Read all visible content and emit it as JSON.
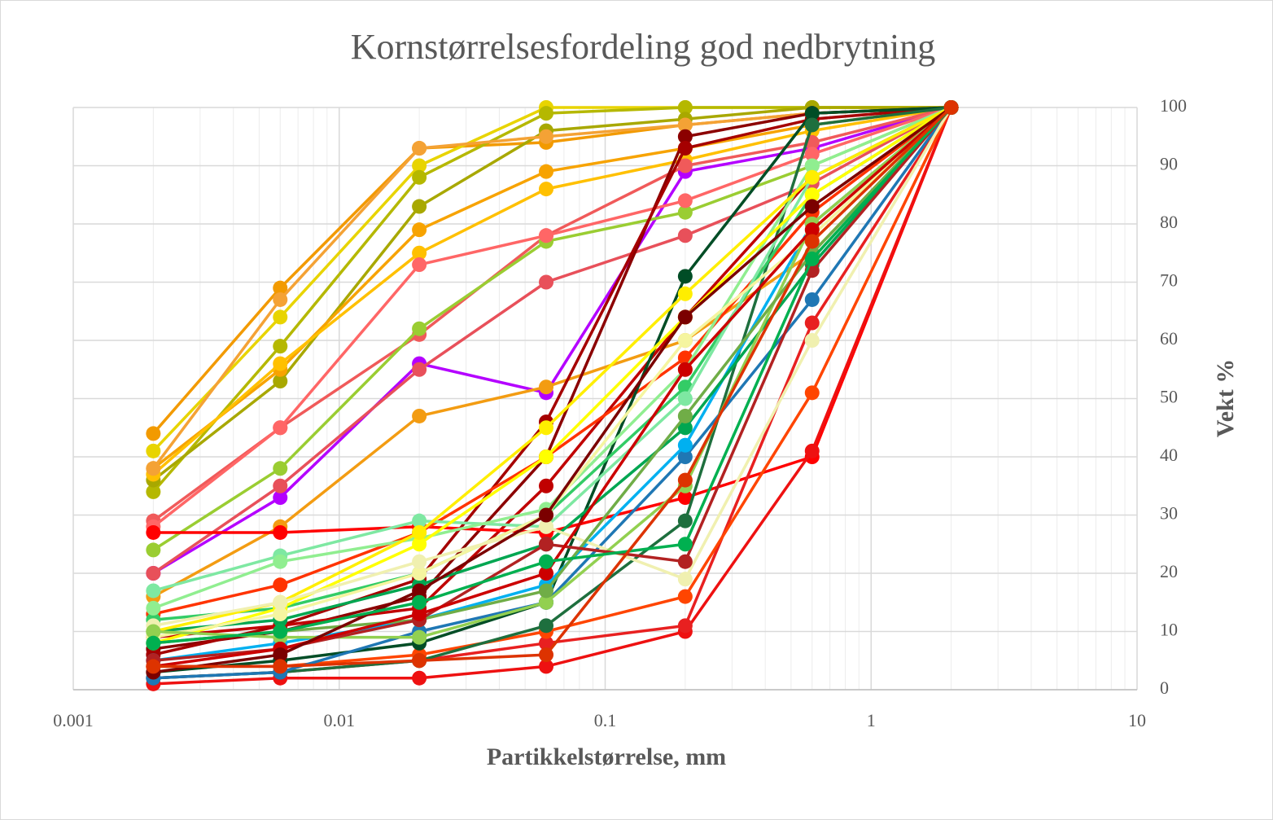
{
  "chart_data": {
    "type": "line",
    "title": "Kornstørrelsesfordeling god nedbrytning",
    "x_label": "Partikkelstørrelse, mm",
    "y_label": "Vekt %",
    "x": [
      0.002,
      0.006,
      0.02,
      0.06,
      0.2,
      0.6,
      2
    ],
    "xlim": [
      0.001,
      10
    ],
    "xticks": [
      0.001,
      0.01,
      0.1,
      1,
      10
    ],
    "x_log": true,
    "ylim": [
      0,
      100
    ],
    "yticks": [
      0,
      10,
      20,
      30,
      40,
      50,
      60,
      70,
      80,
      90,
      100
    ],
    "grid": true,
    "minor_grid": true,
    "y_axis_side": "right",
    "series": [
      {
        "color": "#f29a00",
        "values": [
          44,
          69,
          93,
          94,
          97,
          99,
          100
        ]
      },
      {
        "color": "#e8d400",
        "values": [
          41,
          64,
          90,
          100,
          100,
          100,
          100
        ]
      },
      {
        "color": "#b5b800",
        "values": [
          34,
          59,
          88,
          99,
          100,
          100,
          100
        ]
      },
      {
        "color": "#a8a800",
        "values": [
          36,
          53,
          83,
          96,
          98,
          100,
          100
        ]
      },
      {
        "color": "#f7a300",
        "values": [
          38,
          55,
          79,
          89,
          93,
          97,
          100
        ]
      },
      {
        "color": "#ffc000",
        "values": [
          37,
          56,
          75,
          86,
          91,
          96,
          100
        ]
      },
      {
        "color": "#f4a235",
        "values": [
          38,
          67,
          93,
          95,
          97,
          99,
          100
        ]
      },
      {
        "color": "#b400ff",
        "values": [
          20,
          33,
          56,
          51,
          89,
          93,
          100
        ]
      },
      {
        "color": "#f05a5a",
        "values": [
          29,
          45,
          61,
          78,
          90,
          94,
          100
        ]
      },
      {
        "color": "#e8505a",
        "values": [
          20,
          35,
          55,
          70,
          78,
          87,
          100
        ]
      },
      {
        "color": "#9acd32",
        "values": [
          24,
          38,
          62,
          77,
          82,
          90,
          100
        ]
      },
      {
        "color": "#f39c12",
        "values": [
          16,
          28,
          47,
          52,
          60,
          75,
          100
        ]
      },
      {
        "color": "#ff6666",
        "values": [
          28,
          45,
          73,
          78,
          84,
          92,
          100
        ]
      },
      {
        "color": "#8b0000",
        "values": [
          7,
          10,
          16,
          40,
          95,
          99,
          100
        ]
      },
      {
        "color": "#a50000",
        "values": [
          6,
          11,
          19,
          46,
          93,
          98,
          100
        ]
      },
      {
        "color": "#c00000",
        "values": [
          9,
          11,
          14,
          35,
          64,
          88,
          100
        ]
      },
      {
        "color": "#ff0000",
        "values": [
          27,
          27,
          28,
          27,
          33,
          40,
          100
        ]
      },
      {
        "color": "#ee1111",
        "values": [
          1,
          2,
          2,
          4,
          10,
          41,
          100
        ]
      },
      {
        "color": "#e82020",
        "values": [
          2,
          3,
          5,
          8,
          11,
          63,
          100
        ]
      },
      {
        "color": "#ff4500",
        "values": [
          4,
          4,
          6,
          10,
          16,
          51,
          100
        ]
      },
      {
        "color": "#ff3300",
        "values": [
          13,
          18,
          27,
          40,
          57,
          82,
          100
        ]
      },
      {
        "color": "#004d26",
        "values": [
          3,
          5,
          8,
          15,
          71,
          99,
          100
        ]
      },
      {
        "color": "#1e6f3e",
        "values": [
          2,
          3,
          5,
          11,
          29,
          97,
          100
        ]
      },
      {
        "color": "#1f77b4",
        "values": [
          2,
          3,
          10,
          15,
          40,
          67,
          100
        ]
      },
      {
        "color": "#00b0f0",
        "values": [
          5,
          8,
          12,
          18,
          42,
          80,
          100
        ]
      },
      {
        "color": "#00a651",
        "values": [
          10,
          12,
          18,
          25,
          45,
          73,
          100
        ]
      },
      {
        "color": "#33cc66",
        "values": [
          12,
          14,
          20,
          30,
          52,
          85,
          100
        ]
      },
      {
        "color": "#7ee8a2",
        "values": [
          17,
          23,
          29,
          28,
          50,
          88,
          100
        ]
      },
      {
        "color": "#90ee90",
        "values": [
          14,
          22,
          26,
          31,
          55,
          90,
          100
        ]
      },
      {
        "color": "#ffff00",
        "values": [
          8,
          14,
          25,
          40,
          64,
          85,
          100
        ]
      },
      {
        "color": "#ffee00",
        "values": [
          10,
          15,
          27,
          45,
          68,
          88,
          100
        ]
      },
      {
        "color": "#f5f5a0",
        "values": [
          9,
          13,
          20,
          30,
          60,
          78,
          100
        ]
      },
      {
        "color": "#f0f0b0",
        "values": [
          11,
          15,
          22,
          28,
          19,
          60,
          100
        ]
      },
      {
        "color": "#92d050",
        "values": [
          10,
          9,
          9,
          15,
          35,
          80,
          100
        ]
      },
      {
        "color": "#70ad47",
        "values": [
          8,
          10,
          12,
          17,
          47,
          75,
          100
        ]
      },
      {
        "color": "#b22222",
        "values": [
          5,
          7,
          12,
          25,
          22,
          72,
          100
        ]
      },
      {
        "color": "#cc0000",
        "values": [
          4,
          7,
          13,
          20,
          55,
          79,
          100
        ]
      },
      {
        "color": "#7b0000",
        "values": [
          3,
          6,
          17,
          30,
          64,
          83,
          100
        ]
      },
      {
        "color": "#00b050",
        "values": [
          8,
          10,
          15,
          22,
          25,
          74,
          100
        ]
      },
      {
        "color": "#dd3300",
        "values": [
          4,
          4,
          5,
          6,
          36,
          77,
          100
        ]
      }
    ]
  }
}
